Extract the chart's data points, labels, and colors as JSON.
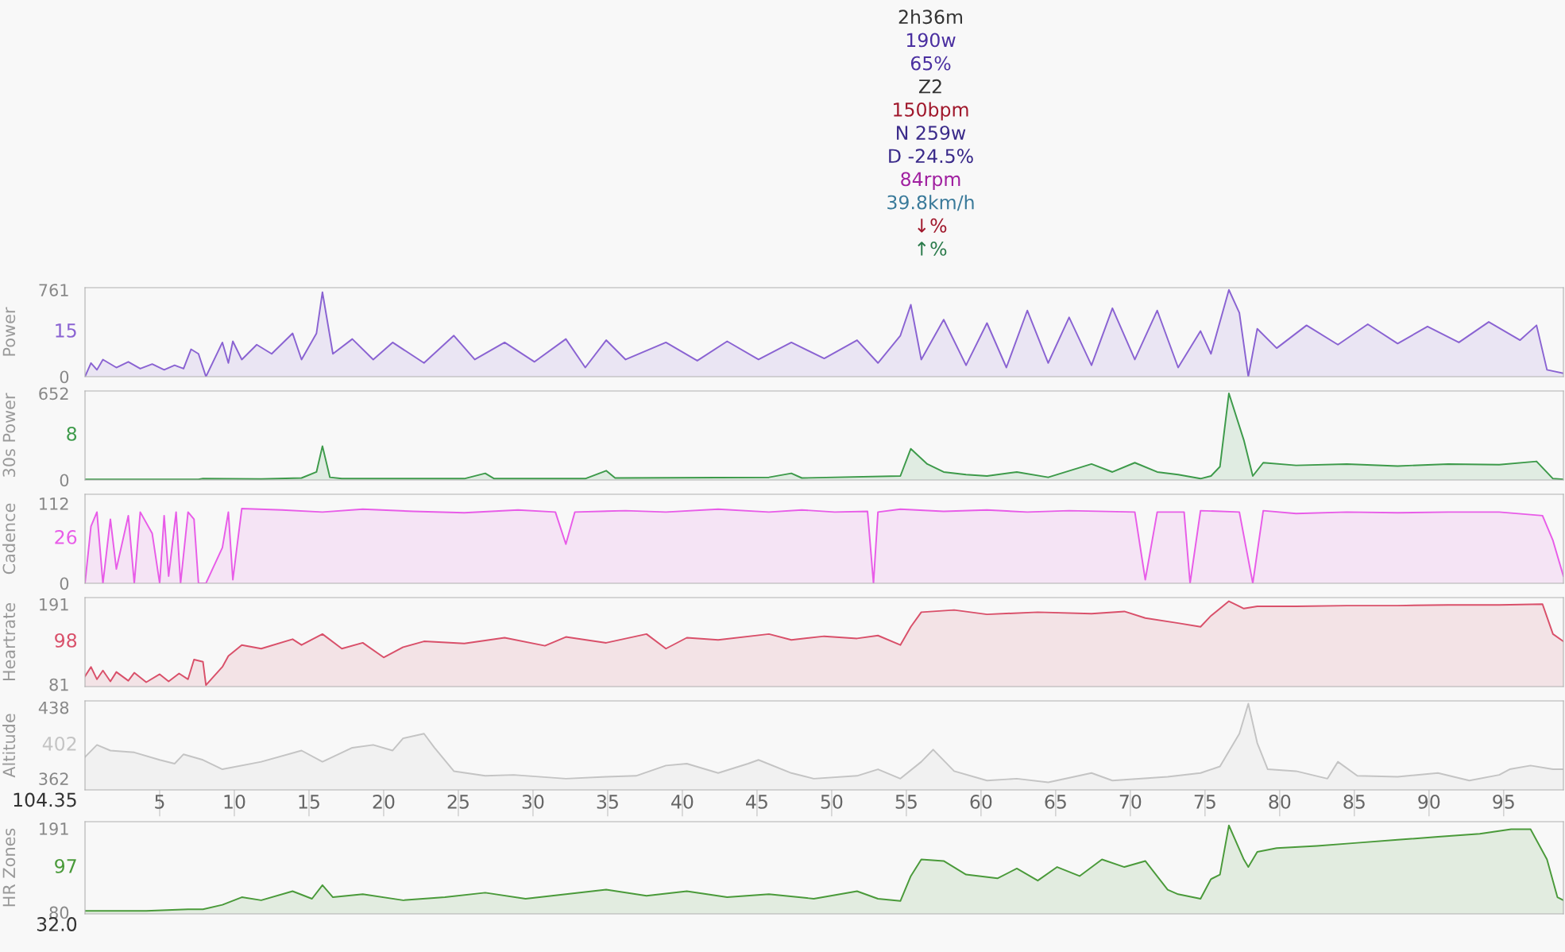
{
  "chart_data": [
    {
      "type": "other",
      "annotations": [
        "2h36m",
        "190w",
        "65%",
        "Z2",
        "150bpm",
        "N 259w",
        "D -24.5%",
        "84rpm",
        "39.8km/h",
        "↓%",
        "↑%"
      ],
      "colors": [
        "#333333",
        "#4a2fa0",
        "#4a2fa0",
        "#333333",
        "#a0182c",
        "#3a2a8a",
        "#3a2a8a",
        "#a020a0",
        "#3a7a9a",
        "#a0182c",
        "#2a7a4a"
      ]
    },
    {
      "type": "area",
      "ylabel": "Power",
      "xlim": [
        0,
        99
      ],
      "xticks": [
        5,
        10,
        15,
        20,
        25,
        30,
        35,
        40,
        45,
        50,
        55,
        60,
        65,
        70,
        75,
        80,
        85,
        90,
        95
      ],
      "ylim": [
        0,
        780
      ],
      "yticks": [
        0,
        761
      ],
      "tick_labels": "y",
      "annotations": [
        "15"
      ],
      "series": [
        {
          "color": "#8a63d2",
          "x": [
            0,
            0.4,
            0.8,
            1.2,
            2.1,
            2.9,
            3.7,
            4.5,
            5.3,
            6.0,
            6.6,
            7.1,
            7.6,
            8.1,
            9.2,
            9.6,
            9.9,
            10.5,
            11.5,
            12.5,
            13.9,
            14.5,
            15.5,
            15.9,
            16.6,
            17.9,
            19.3,
            20.6,
            22.7,
            24.7,
            26.1,
            28.1,
            30.1,
            32.2,
            33.5,
            34.9,
            36.2,
            38.9,
            41.0,
            43.0,
            45.1,
            47.3,
            49.5,
            51.7,
            53.1,
            54.6,
            55.3,
            56.0,
            57.5,
            59.0,
            60.4,
            61.7,
            63.1,
            64.5,
            65.9,
            67.4,
            68.8,
            70.3,
            71.8,
            73.2,
            74.7,
            75.4,
            76.6,
            77.3,
            77.9,
            78.5,
            79.8,
            81.8,
            83.9,
            85.9,
            87.9,
            89.9,
            92.0,
            94.0,
            96.1,
            97.2,
            97.9,
            99.0
          ],
          "values": [
            0,
            120,
            60,
            150,
            80,
            130,
            70,
            110,
            60,
            100,
            70,
            240,
            200,
            0,
            300,
            120,
            310,
            150,
            280,
            200,
            380,
            150,
            380,
            740,
            200,
            330,
            150,
            300,
            120,
            360,
            150,
            300,
            130,
            330,
            80,
            320,
            150,
            300,
            140,
            310,
            150,
            300,
            160,
            320,
            120,
            360,
            630,
            150,
            500,
            100,
            470,
            80,
            580,
            120,
            520,
            100,
            600,
            150,
            580,
            80,
            400,
            200,
            761,
            560,
            0,
            420,
            250,
            450,
            280,
            460,
            290,
            440,
            300,
            480,
            320,
            450,
            60,
            30
          ]
        }
      ]
    },
    {
      "type": "area",
      "ylabel": "30s Power",
      "xlim": [
        0,
        99
      ],
      "xticks": [
        5,
        10,
        15,
        20,
        25,
        30,
        35,
        40,
        45,
        50,
        55,
        60,
        65,
        70,
        75,
        80,
        85,
        90,
        95
      ],
      "ylim": [
        0,
        670
      ],
      "yticks": [
        0,
        652
      ],
      "tick_labels": "y",
      "annotations": [
        "8"
      ],
      "series": [
        {
          "color": "#3d9a4a",
          "x": [
            0,
            7.6,
            7.9,
            11.8,
            14.5,
            15.5,
            15.9,
            16.4,
            17.2,
            25.4,
            26.8,
            27.4,
            33.5,
            34.9,
            35.5,
            45.8,
            47.3,
            48.0,
            54.6,
            55.3,
            56.4,
            57.5,
            59.0,
            60.4,
            62.4,
            64.5,
            67.4,
            68.8,
            70.3,
            71.8,
            73.2,
            74.7,
            75.4,
            76.0,
            76.6,
            77.6,
            78.2,
            78.9,
            81.1,
            84.5,
            87.9,
            91.3,
            94.7,
            97.2,
            98.3,
            99.0
          ],
          "values": [
            5,
            5,
            10,
            8,
            15,
            60,
            255,
            20,
            10,
            10,
            50,
            10,
            10,
            70,
            15,
            20,
            50,
            15,
            30,
            235,
            120,
            60,
            40,
            30,
            60,
            20,
            120,
            60,
            130,
            60,
            40,
            10,
            30,
            100,
            652,
            300,
            30,
            130,
            110,
            120,
            105,
            120,
            115,
            140,
            10,
            5
          ]
        }
      ]
    },
    {
      "type": "area",
      "ylabel": "Cadence",
      "xlim": [
        0,
        99
      ],
      "xticks": [
        5,
        10,
        15,
        20,
        25,
        30,
        35,
        40,
        45,
        50,
        55,
        60,
        65,
        70,
        75,
        80,
        85,
        90,
        95
      ],
      "ylim": [
        0,
        125
      ],
      "yticks": [
        0,
        112
      ],
      "tick_labels": "y",
      "annotations": [
        "26"
      ],
      "series": [
        {
          "color": "#e85ce8",
          "x": [
            0,
            0.4,
            0.8,
            1.2,
            1.7,
            2.1,
            2.9,
            3.3,
            3.7,
            4.5,
            5.0,
            5.3,
            5.6,
            6.1,
            6.4,
            6.9,
            7.3,
            7.6,
            8.1,
            9.2,
            9.6,
            9.9,
            10.5,
            13.2,
            15.9,
            18.6,
            22.0,
            25.4,
            29.0,
            31.5,
            32.2,
            32.8,
            36.2,
            38.9,
            42.4,
            45.8,
            48.0,
            50.2,
            52.4,
            52.8,
            53.1,
            54.6,
            57.5,
            60.4,
            63.1,
            65.9,
            70.3,
            71.0,
            71.8,
            73.6,
            74.0,
            74.7,
            77.3,
            78.2,
            78.9,
            81.1,
            84.5,
            87.9,
            91.3,
            94.7,
            97.6,
            98.3,
            99.0
          ],
          "values": [
            0,
            80,
            100,
            0,
            90,
            20,
            95,
            0,
            100,
            70,
            0,
            95,
            10,
            100,
            0,
            100,
            90,
            0,
            0,
            50,
            100,
            5,
            105,
            103,
            100,
            104,
            101,
            99,
            103,
            100,
            55,
            100,
            102,
            100,
            104,
            100,
            103,
            100,
            101,
            0,
            100,
            104,
            101,
            103,
            100,
            102,
            100,
            5,
            100,
            100,
            0,
            102,
            100,
            0,
            102,
            98,
            100,
            99,
            100,
            100,
            95,
            60,
            10
          ]
        }
      ]
    },
    {
      "type": "area",
      "ylabel": "Heartrate",
      "xlim": [
        0,
        99
      ],
      "xticks": [
        5,
        10,
        15,
        20,
        25,
        30,
        35,
        40,
        45,
        50,
        55,
        60,
        65,
        70,
        75,
        80,
        85,
        90,
        95
      ],
      "ylim": [
        78,
        200
      ],
      "yticks": [
        81,
        191
      ],
      "tick_labels": "y",
      "annotations": [
        "98"
      ],
      "series": [
        {
          "color": "#d9506a",
          "x": [
            0,
            0.4,
            0.8,
            1.2,
            1.7,
            2.1,
            2.9,
            3.3,
            4.1,
            5.0,
            5.6,
            6.3,
            6.9,
            7.3,
            7.9,
            8.1,
            9.2,
            9.6,
            10.5,
            11.8,
            13.9,
            14.5,
            15.9,
            17.2,
            18.6,
            20.0,
            21.3,
            22.7,
            25.4,
            28.1,
            30.8,
            32.2,
            34.9,
            37.6,
            38.9,
            40.3,
            42.4,
            45.8,
            47.3,
            49.5,
            51.7,
            53.1,
            54.6,
            55.3,
            56.0,
            58.2,
            60.4,
            63.8,
            67.4,
            69.6,
            71.0,
            73.2,
            74.7,
            75.4,
            76.6,
            77.6,
            78.5,
            81.1,
            84.5,
            87.9,
            91.3,
            94.7,
            97.6,
            98.3,
            99.0
          ],
          "values": [
            92,
            105,
            88,
            100,
            85,
            98,
            86,
            97,
            84,
            95,
            85,
            96,
            88,
            115,
            112,
            80,
            105,
            120,
            135,
            130,
            143,
            135,
            150,
            130,
            138,
            118,
            132,
            140,
            137,
            145,
            134,
            146,
            138,
            150,
            130,
            145,
            142,
            150,
            142,
            147,
            144,
            148,
            135,
            160,
            180,
            183,
            177,
            180,
            178,
            181,
            172,
            165,
            160,
            175,
            195,
            185,
            188,
            188,
            189,
            189,
            190,
            190,
            191,
            150,
            140
          ]
        }
      ]
    },
    {
      "type": "area",
      "ylabel": "Altitude",
      "xlim": [
        0,
        99
      ],
      "ylim": [
        350,
        445
      ],
      "yticks": [
        362,
        438
      ],
      "annotations": [
        "402",
        "104.35"
      ],
      "xticks": [
        5,
        10,
        15,
        20,
        25,
        30,
        35,
        40,
        45,
        50,
        55,
        60,
        65,
        70,
        75,
        80,
        85,
        90,
        95
      ],
      "series": [
        {
          "color": "#c4c4c4",
          "x": [
            0,
            0.8,
            1.7,
            3.3,
            5.0,
            6.0,
            6.6,
            7.9,
            9.2,
            11.8,
            14.5,
            15.9,
            17.9,
            19.3,
            20.6,
            21.3,
            22.7,
            23.4,
            24.7,
            26.8,
            28.7,
            32.2,
            34.9,
            36.9,
            38.9,
            40.3,
            42.4,
            44.4,
            45.1,
            47.3,
            48.8,
            51.7,
            53.1,
            54.6,
            56.0,
            56.8,
            58.2,
            60.4,
            62.4,
            64.5,
            67.4,
            68.8,
            72.5,
            74.7,
            76.0,
            77.3,
            77.9,
            78.5,
            79.2,
            81.1,
            83.2,
            83.9,
            85.2,
            87.9,
            90.6,
            92.7,
            94.7,
            95.4,
            96.8,
            98.3,
            99.0
          ],
          "values": [
            385,
            398,
            392,
            390,
            382,
            378,
            388,
            382,
            372,
            380,
            392,
            380,
            395,
            398,
            392,
            405,
            410,
            395,
            370,
            365,
            366,
            362,
            364,
            365,
            376,
            378,
            368,
            378,
            382,
            368,
            362,
            365,
            372,
            362,
            380,
            393,
            370,
            360,
            362,
            358,
            368,
            360,
            364,
            368,
            375,
            410,
            442,
            400,
            372,
            370,
            362,
            380,
            365,
            364,
            368,
            360,
            366,
            372,
            376,
            372,
            372
          ]
        }
      ]
    },
    {
      "type": "area",
      "ylabel": "HR Zones",
      "xlim": [
        0,
        99
      ],
      "xticks": [
        5,
        10,
        15,
        20,
        25,
        30,
        35,
        40,
        45,
        50,
        55,
        60,
        65,
        70,
        75,
        80,
        85,
        90,
        95
      ],
      "ylim": [
        78,
        200
      ],
      "yticks": [
        80,
        191
      ],
      "tick_labels": "y",
      "annotations": [
        "97",
        "32.0"
      ],
      "series": [
        {
          "color": "#4a9a3a",
          "x": [
            0,
            4.1,
            6.9,
            7.9,
            9.2,
            10.5,
            11.8,
            13.9,
            15.2,
            15.9,
            16.6,
            18.6,
            21.3,
            24.1,
            26.8,
            29.5,
            32.2,
            34.9,
            37.6,
            40.3,
            43.0,
            45.8,
            48.8,
            51.7,
            53.1,
            54.6,
            55.3,
            56.0,
            57.5,
            59.0,
            61.1,
            62.4,
            63.8,
            65.1,
            66.6,
            68.1,
            69.6,
            71.0,
            72.5,
            73.2,
            74.7,
            75.4,
            76.0,
            76.6,
            77.6,
            77.9,
            78.5,
            79.8,
            82.5,
            85.2,
            87.9,
            90.6,
            93.4,
            95.5,
            96.8,
            97.9,
            98.6,
            99.0
          ],
          "values": [
            82,
            82,
            84,
            84,
            90,
            100,
            96,
            108,
            98,
            116,
            100,
            104,
            96,
            100,
            106,
            98,
            104,
            110,
            102,
            108,
            100,
            104,
            98,
            108,
            98,
            95,
            128,
            150,
            148,
            130,
            125,
            138,
            122,
            140,
            128,
            150,
            140,
            148,
            110,
            104,
            98,
            124,
            130,
            195,
            150,
            140,
            160,
            165,
            168,
            172,
            176,
            180,
            184,
            190,
            190,
            150,
            100,
            96
          ]
        }
      ]
    }
  ]
}
